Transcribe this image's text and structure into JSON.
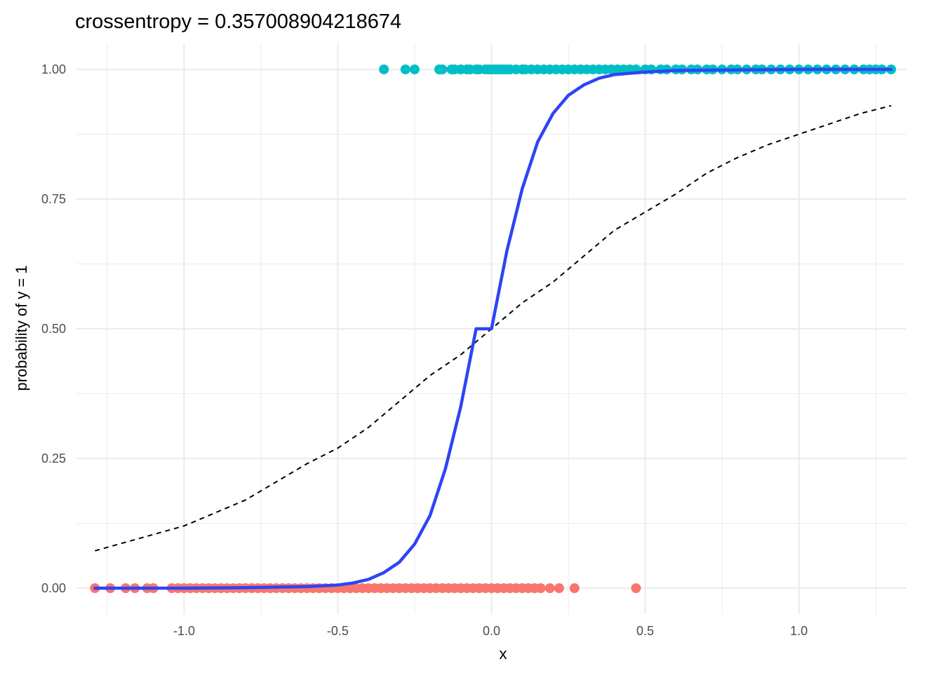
{
  "chart_data": {
    "type": "scatter",
    "title": "crossentropy = 0.357008904218674",
    "xlabel": "x",
    "ylabel": "probability of y = 1",
    "xlim": [
      -1.35,
      1.35
    ],
    "ylim": [
      -0.05,
      1.05
    ],
    "x_ticks": [
      -1.0,
      -0.5,
      0.0,
      0.5,
      1.0
    ],
    "x_tick_labels": [
      "-1.0",
      "-0.5",
      "0.0",
      "0.5",
      "1.0"
    ],
    "y_ticks": [
      0,
      0.25,
      0.5,
      0.75,
      1.0
    ],
    "y_tick_labels": [
      "0.00",
      "0.25",
      "0.50",
      "0.75",
      "1.00"
    ],
    "grid": true,
    "legend": "none",
    "colors": {
      "class_0": "#F8766D",
      "class_1": "#00BFC4",
      "fitted": "#2E44F5",
      "reference": "#000000",
      "grid": "#EBEBEB"
    },
    "series": [
      {
        "type": "scatter",
        "y": 1,
        "x": [
          -0.35,
          -0.28,
          -0.25,
          -0.17,
          -0.16,
          -0.13,
          -0.12,
          -0.1,
          -0.08,
          -0.07,
          -0.05,
          -0.04,
          -0.02,
          -0.01,
          0.0,
          0.01,
          0.02,
          0.03,
          0.04,
          0.05,
          0.06,
          0.08,
          0.1,
          0.11,
          0.13,
          0.15,
          0.17,
          0.19,
          0.21,
          0.23,
          0.25,
          0.27,
          0.29,
          0.31,
          0.33,
          0.35,
          0.37,
          0.39,
          0.41,
          0.43,
          0.45,
          0.47,
          0.5,
          0.52,
          0.55,
          0.57,
          0.6,
          0.62,
          0.65,
          0.67,
          0.7,
          0.72,
          0.75,
          0.78,
          0.8,
          0.83,
          0.86,
          0.88,
          0.91,
          0.94,
          0.97,
          1.0,
          1.03,
          1.06,
          1.09,
          1.12,
          1.15,
          1.18,
          1.21,
          1.23,
          1.25,
          1.27,
          1.3
        ]
      },
      {
        "type": "scatter",
        "y": 0,
        "x": [
          -1.29,
          -1.24,
          -1.19,
          -1.16,
          -1.12,
          -1.1,
          -1.04,
          -1.02,
          -1.0,
          -0.98,
          -0.96,
          -0.94,
          -0.92,
          -0.9,
          -0.88,
          -0.86,
          -0.84,
          -0.82,
          -0.8,
          -0.78,
          -0.76,
          -0.74,
          -0.72,
          -0.7,
          -0.68,
          -0.66,
          -0.64,
          -0.62,
          -0.6,
          -0.58,
          -0.56,
          -0.54,
          -0.52,
          -0.5,
          -0.48,
          -0.46,
          -0.44,
          -0.42,
          -0.4,
          -0.38,
          -0.36,
          -0.34,
          -0.32,
          -0.3,
          -0.28,
          -0.26,
          -0.24,
          -0.22,
          -0.2,
          -0.18,
          -0.16,
          -0.14,
          -0.12,
          -0.1,
          -0.08,
          -0.06,
          -0.04,
          -0.02,
          0.0,
          0.02,
          0.04,
          0.06,
          0.08,
          0.1,
          0.12,
          0.14,
          0.16,
          0.19,
          0.22,
          0.27,
          0.47
        ]
      },
      {
        "type": "line",
        "style": "solid",
        "x": [
          -1.29,
          -1.0,
          -0.8,
          -0.6,
          -0.5,
          -0.45,
          -0.4,
          -0.35,
          -0.3,
          -0.25,
          -0.2,
          -0.15,
          -0.1,
          -0.05,
          0.0,
          0.05,
          0.1,
          0.15,
          0.2,
          0.25,
          0.3,
          0.35,
          0.4,
          0.5,
          0.6,
          0.8,
          1.0,
          1.3
        ],
        "y": [
          0.0,
          0.0,
          0.001,
          0.003,
          0.006,
          0.01,
          0.017,
          0.03,
          0.05,
          0.085,
          0.14,
          0.23,
          0.35,
          0.5,
          0.5,
          0.65,
          0.77,
          0.86,
          0.915,
          0.95,
          0.97,
          0.983,
          0.99,
          0.995,
          0.998,
          0.999,
          1.0,
          1.0
        ]
      },
      {
        "type": "line",
        "style": "dashed",
        "x": [
          -1.29,
          -1.0,
          -0.8,
          -0.6,
          -0.5,
          -0.4,
          -0.3,
          -0.2,
          -0.1,
          0.0,
          0.1,
          0.2,
          0.3,
          0.4,
          0.5,
          0.6,
          0.7,
          0.8,
          0.9,
          1.0,
          1.1,
          1.2,
          1.3
        ],
        "y": [
          0.072,
          0.12,
          0.17,
          0.24,
          0.27,
          0.31,
          0.36,
          0.41,
          0.45,
          0.5,
          0.55,
          0.59,
          0.64,
          0.69,
          0.725,
          0.76,
          0.8,
          0.83,
          0.855,
          0.875,
          0.895,
          0.915,
          0.93
        ]
      }
    ]
  }
}
